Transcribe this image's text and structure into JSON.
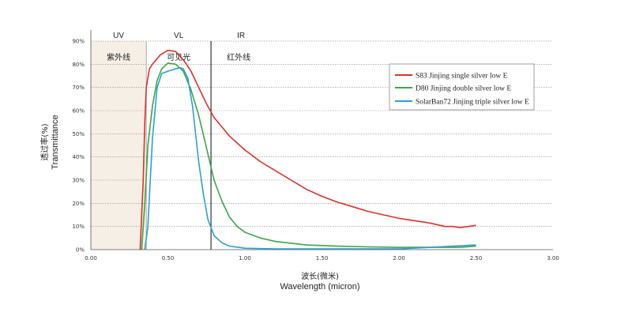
{
  "chart_data": {
    "type": "line",
    "title": "",
    "xlabel_cn": "波长(微米)",
    "xlabel": "Wavelength    (micron)",
    "ylabel_cn": "透过率(%)",
    "ylabel": "Transmittance",
    "xlim": [
      0,
      3
    ],
    "ylim": [
      0,
      90
    ],
    "x_ticks": [
      "0.00",
      "0.50",
      "1.00",
      "1.50",
      "2.00",
      "2.50",
      "3.00"
    ],
    "y_ticks": [
      "0%",
      "10%",
      "20%",
      "30%",
      "40%",
      "50%",
      "60%",
      "70%",
      "80%",
      "90%"
    ],
    "grid": true,
    "legend_position": "top-right",
    "regions": [
      {
        "label": "UV",
        "label_cn": "紫外线",
        "x_range": [
          0,
          0.36
        ],
        "fill": "#f5efe6"
      },
      {
        "label": "VL",
        "label_cn": "可见光",
        "x_range": [
          0.36,
          0.78
        ],
        "fill": "#ffffff"
      },
      {
        "label": "IR",
        "label_cn": "红外线",
        "x_range": [
          0.78,
          3.0
        ],
        "fill": "#ffffff"
      }
    ],
    "series": [
      {
        "name": "S83 Jinjing single silver low E",
        "color": "#d9322a",
        "x": [
          0.32,
          0.34,
          0.35,
          0.36,
          0.38,
          0.4,
          0.45,
          0.5,
          0.55,
          0.6,
          0.65,
          0.7,
          0.75,
          0.8,
          0.9,
          1.0,
          1.1,
          1.2,
          1.3,
          1.4,
          1.5,
          1.6,
          1.7,
          1.8,
          1.9,
          2.0,
          2.1,
          2.2,
          2.3,
          2.35,
          2.4,
          2.45,
          2.5
        ],
        "y": [
          0,
          30,
          55,
          70,
          78,
          80,
          84,
          86,
          85.5,
          82,
          77,
          70,
          63,
          57,
          49,
          43,
          38,
          34,
          30,
          26,
          23,
          20.5,
          18.5,
          16.5,
          15,
          13.5,
          12.5,
          11.5,
          10,
          10,
          9.5,
          10,
          10.5
        ]
      },
      {
        "name": "D80 Jinjing double silver low E",
        "color": "#3aa64a",
        "x": [
          0.33,
          0.35,
          0.37,
          0.4,
          0.43,
          0.46,
          0.5,
          0.55,
          0.6,
          0.65,
          0.7,
          0.75,
          0.8,
          0.85,
          0.9,
          0.95,
          1.0,
          1.1,
          1.2,
          1.4,
          1.6,
          1.8,
          2.0,
          2.2,
          2.4,
          2.5
        ],
        "y": [
          0,
          20,
          45,
          62,
          73,
          78,
          80.5,
          80,
          77,
          69,
          58,
          44,
          30,
          21,
          14,
          10,
          7.5,
          5,
          3.5,
          2,
          1.5,
          1.2,
          1,
          1,
          1,
          1.5
        ]
      },
      {
        "name": "SolarBan72 Jinjing triple silver low E",
        "color": "#2d9fd0",
        "x": [
          0.35,
          0.37,
          0.4,
          0.43,
          0.46,
          0.5,
          0.55,
          0.58,
          0.6,
          0.63,
          0.66,
          0.68,
          0.7,
          0.73,
          0.76,
          0.8,
          0.85,
          0.9,
          1.0,
          1.2,
          1.5,
          2.0,
          2.5
        ],
        "y": [
          0,
          10,
          48,
          70,
          76,
          77,
          78,
          78.5,
          78,
          74,
          62,
          50,
          38,
          24,
          13,
          6,
          3,
          1.5,
          0.6,
          0.3,
          0.3,
          0.3,
          2.0
        ]
      }
    ]
  }
}
